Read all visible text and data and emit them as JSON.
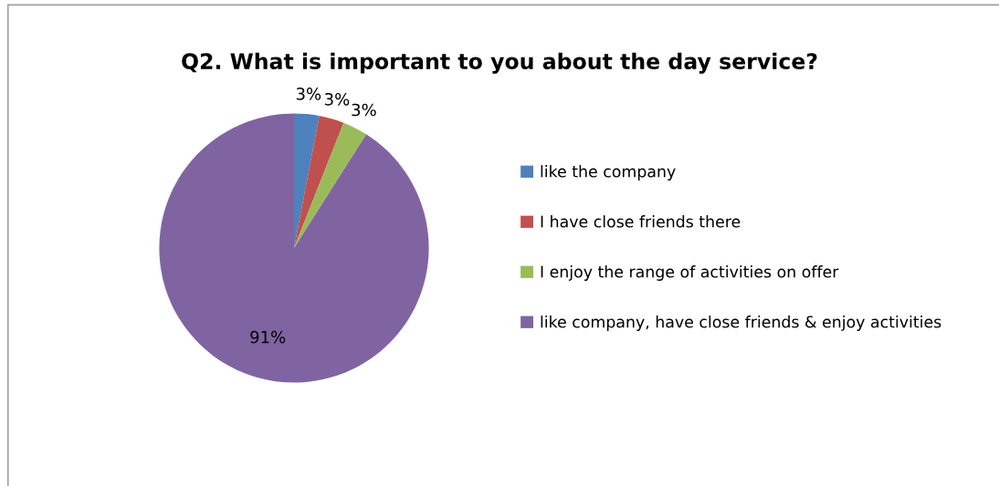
{
  "chart_data": {
    "type": "pie",
    "title": "Q2. What is important to you about the day service?",
    "categories": [
      "like the company",
      "I have close friends there",
      "I enjoy the range of activities on offer",
      "like company, have close friends & enjoy activities"
    ],
    "values": [
      3,
      3,
      3,
      91
    ],
    "colors": [
      "#4f81bd",
      "#c0504d",
      "#9bbb59",
      "#8064a2"
    ],
    "value_labels": [
      "3%",
      "3%",
      "3%",
      "91%"
    ],
    "legend": "right"
  }
}
